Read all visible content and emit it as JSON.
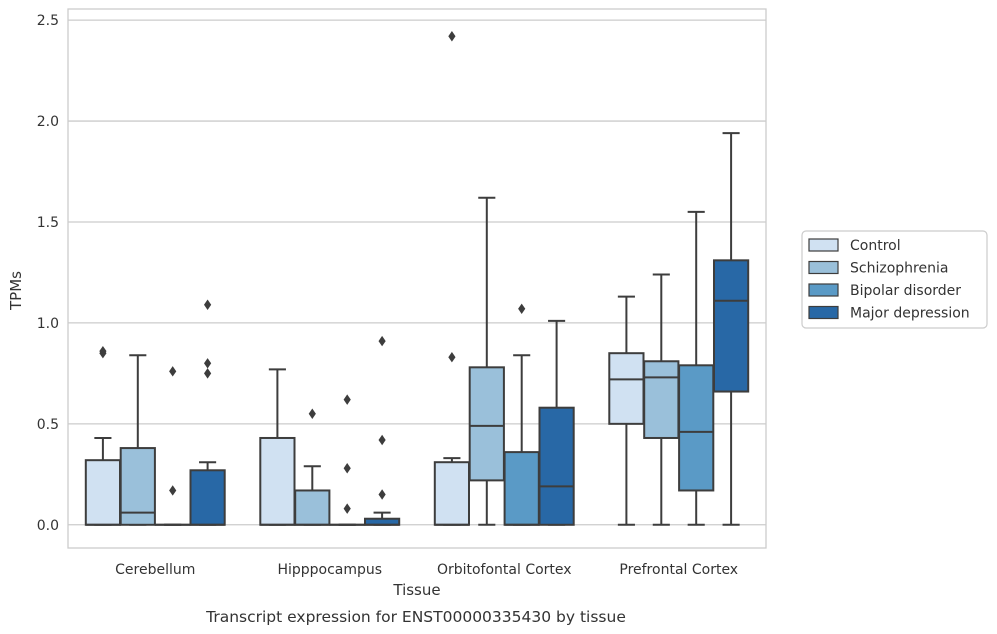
{
  "chart_data": {
    "type": "box",
    "caption": "Transcript expression for ENST00000335430 by tissue",
    "xlabel": "Tissue",
    "ylabel": "TPMs",
    "ylim": [
      -0.115,
      2.555
    ],
    "yticks": [
      "0.0",
      "0.5",
      "1.0",
      "1.5",
      "2.0",
      "2.5"
    ],
    "ytick_values": [
      0,
      0.5,
      1,
      1.5,
      2,
      2.5
    ],
    "categories": [
      "Cerebellum",
      "Hipppocampus",
      "Orbitofontal Cortex",
      "Prefrontal Cortex"
    ],
    "grid": "horizontal",
    "legend_position": "right",
    "series": [
      {
        "name": "Control",
        "color": "#d0e1f2",
        "boxes": [
          {
            "whisker_low": 0,
            "q1": 0,
            "median": 0,
            "q3": 0.32,
            "whisker_high": 0.43,
            "outliers": [
              0.85,
              0.86
            ]
          },
          {
            "whisker_low": 0,
            "q1": 0,
            "median": 0,
            "q3": 0.43,
            "whisker_high": 0.77,
            "outliers": []
          },
          {
            "whisker_low": 0,
            "q1": 0,
            "median": 0,
            "q3": 0.31,
            "whisker_high": 0.33,
            "outliers": [
              0.83,
              2.42
            ]
          },
          {
            "whisker_low": 0,
            "q1": 0.5,
            "median": 0.72,
            "q3": 0.85,
            "whisker_high": 1.13,
            "outliers": []
          }
        ]
      },
      {
        "name": "Schizophrenia",
        "color": "#9ac0da",
        "boxes": [
          {
            "whisker_low": 0,
            "q1": 0,
            "median": 0.06,
            "q3": 0.38,
            "whisker_high": 0.84,
            "outliers": []
          },
          {
            "whisker_low": 0,
            "q1": 0,
            "median": 0,
            "q3": 0.17,
            "whisker_high": 0.29,
            "outliers": [
              0.55
            ]
          },
          {
            "whisker_low": 0,
            "q1": 0.22,
            "median": 0.49,
            "q3": 0.78,
            "whisker_high": 1.62,
            "outliers": []
          },
          {
            "whisker_low": 0,
            "q1": 0.43,
            "median": 0.73,
            "q3": 0.81,
            "whisker_high": 1.24,
            "outliers": []
          }
        ]
      },
      {
        "name": "Bipolar disorder",
        "color": "#5a9ac6",
        "boxes": [
          {
            "whisker_low": 0,
            "q1": 0,
            "median": 0,
            "q3": 0,
            "whisker_high": 0,
            "outliers": [
              0.17,
              0.76
            ]
          },
          {
            "whisker_low": 0,
            "q1": 0,
            "median": 0,
            "q3": 0,
            "whisker_high": 0,
            "outliers": [
              0.08,
              0.28,
              0.62
            ]
          },
          {
            "whisker_low": 0,
            "q1": 0,
            "median": 0,
            "q3": 0.36,
            "whisker_high": 0.84,
            "outliers": [
              1.07
            ]
          },
          {
            "whisker_low": 0,
            "q1": 0.17,
            "median": 0.46,
            "q3": 0.79,
            "whisker_high": 1.55,
            "outliers": []
          }
        ]
      },
      {
        "name": "Major depression",
        "color": "#2868a6",
        "boxes": [
          {
            "whisker_low": 0,
            "q1": 0,
            "median": 0,
            "q3": 0.27,
            "whisker_high": 0.31,
            "outliers": [
              0.75,
              0.8,
              1.09
            ]
          },
          {
            "whisker_low": 0,
            "q1": 0,
            "median": 0,
            "q3": 0.03,
            "whisker_high": 0.06,
            "outliers": [
              0.15,
              0.42,
              0.91
            ]
          },
          {
            "whisker_low": 0,
            "q1": 0,
            "median": 0.19,
            "q3": 0.58,
            "whisker_high": 1.01,
            "outliers": []
          },
          {
            "whisker_low": 0,
            "q1": 0.66,
            "median": 1.11,
            "q3": 1.31,
            "whisker_high": 1.94,
            "outliers": []
          }
        ]
      }
    ]
  }
}
